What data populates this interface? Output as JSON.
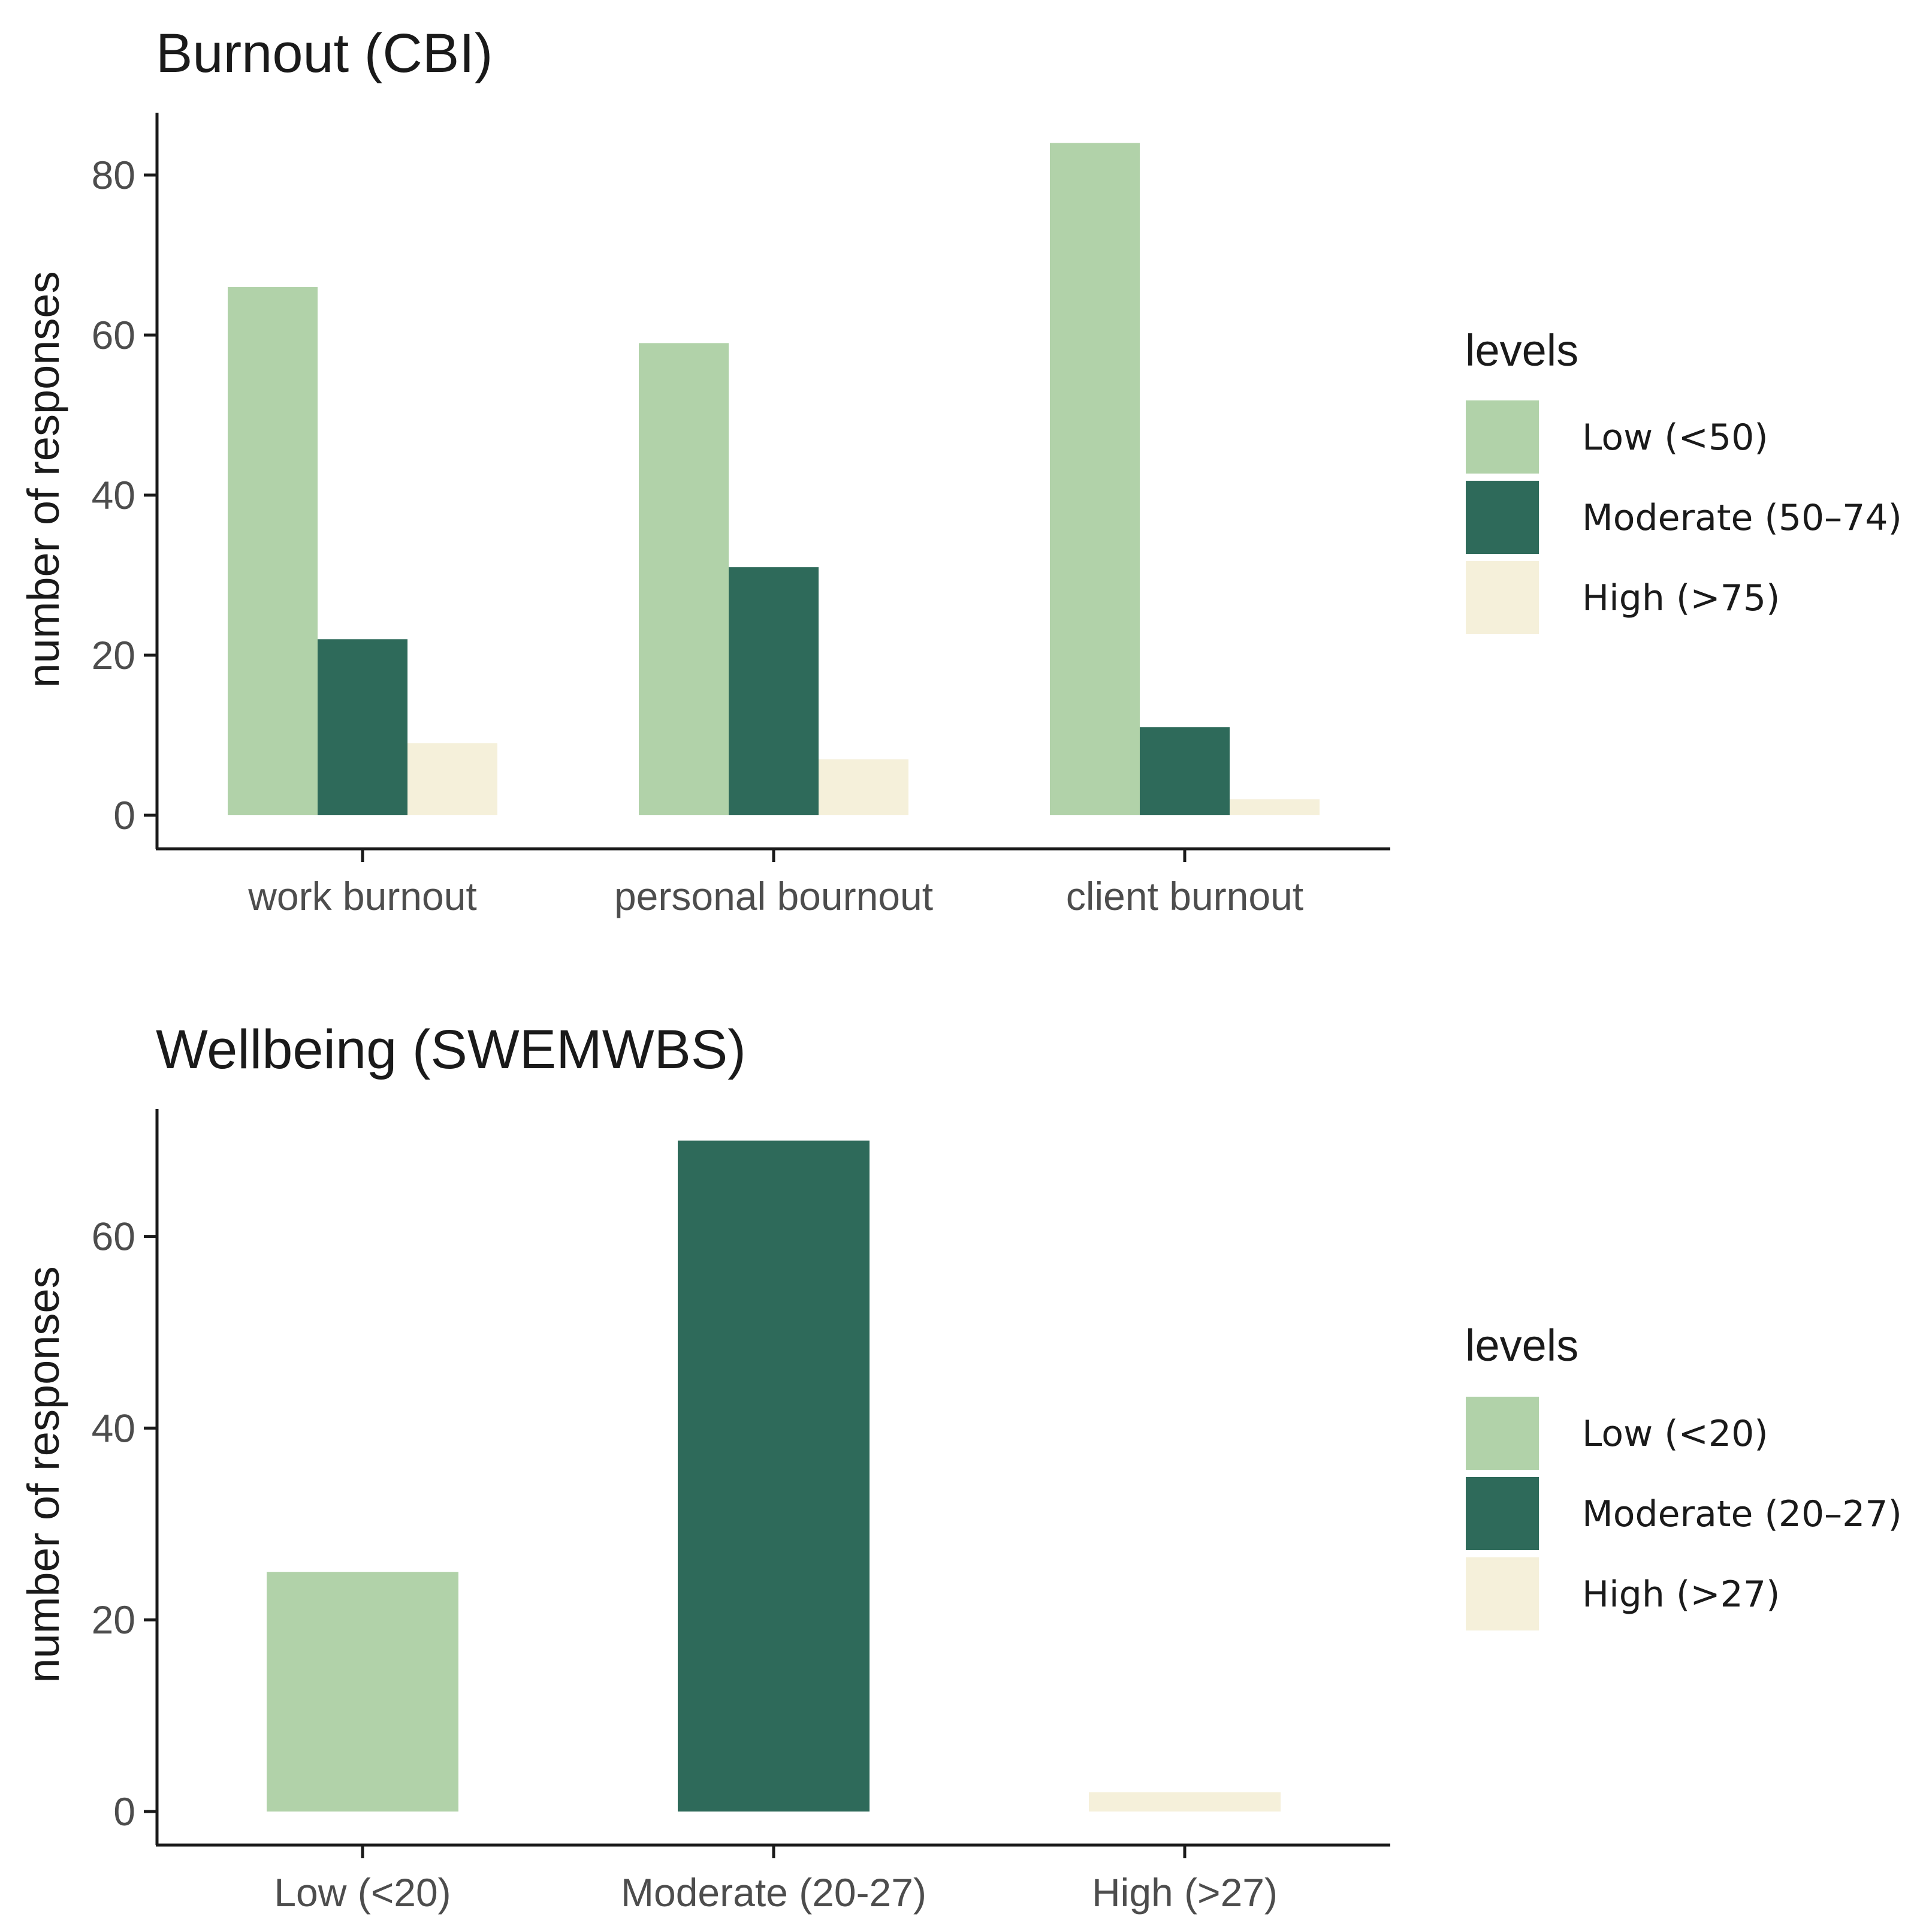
{
  "chart_data": [
    {
      "type": "bar",
      "title": "Burnout (CBI)",
      "ylabel": "number of responses",
      "xlabel": "",
      "ylim": [
        0,
        88
      ],
      "yticks": [
        0,
        20,
        40,
        60,
        80
      ],
      "categories": [
        "work burnout",
        "personal bournout",
        "client burnout"
      ],
      "legend": {
        "title": "levels",
        "position": "right"
      },
      "series": [
        {
          "name": "Low (<50)",
          "color": "#b1d2a9",
          "values": [
            66,
            59,
            84
          ]
        },
        {
          "name": "Moderate (50–74)",
          "color": "#2e6a5a",
          "values": [
            22,
            31,
            11
          ]
        },
        {
          "name": "High (>75)",
          "color": "#f5f0da",
          "values": [
            9,
            7,
            2
          ]
        }
      ]
    },
    {
      "type": "bar",
      "title": "Wellbeing (SWEMWBS)",
      "ylabel": "number of responses",
      "xlabel": "",
      "ylim": [
        0,
        74
      ],
      "yticks": [
        0,
        20,
        40,
        60
      ],
      "categories": [
        "Low (<20)",
        "Moderate (20-27)",
        "High (>27)"
      ],
      "legend": {
        "title": "levels",
        "position": "right"
      },
      "series": [
        {
          "name": "Low (<20)",
          "color": "#b1d2a9",
          "values": [
            25,
            0,
            0
          ]
        },
        {
          "name": "Moderate (20–27)",
          "color": "#2e6a5a",
          "values": [
            0,
            70,
            0
          ]
        },
        {
          "name": "High (>27)",
          "color": "#f5f0da",
          "values": [
            0,
            0,
            2
          ]
        }
      ]
    }
  ]
}
